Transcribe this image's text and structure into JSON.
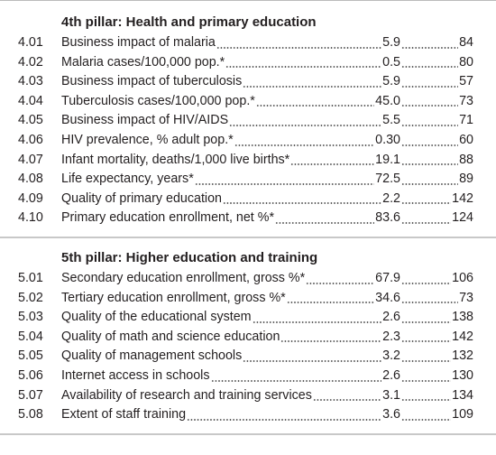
{
  "sections": [
    {
      "title": "4th pillar: Health and primary education",
      "rows": [
        {
          "code": "4.01",
          "label": "Business impact of malaria",
          "value": "5.9",
          "rank": 84
        },
        {
          "code": "4.02",
          "label": "Malaria cases/100,000 pop.*",
          "value": "0.5",
          "rank": 80
        },
        {
          "code": "4.03",
          "label": "Business impact of tuberculosis",
          "value": "5.9",
          "rank": 57
        },
        {
          "code": "4.04",
          "label": "Tuberculosis cases/100,000 pop.*",
          "value": "45.0",
          "rank": 73
        },
        {
          "code": "4.05",
          "label": "Business impact of HIV/AIDS",
          "value": "5.5",
          "rank": 71
        },
        {
          "code": "4.06",
          "label": "HIV prevalence, % adult pop.*",
          "value": "0.30",
          "rank": 60
        },
        {
          "code": "4.07",
          "label": "Infant mortality, deaths/1,000 live births*",
          "value": "19.1",
          "rank": 88
        },
        {
          "code": "4.08",
          "label": "Life expectancy, years*",
          "value": "72.5",
          "rank": 89
        },
        {
          "code": "4.09",
          "label": "Quality of primary education",
          "value": "2.2",
          "rank": 142
        },
        {
          "code": "4.10",
          "label": "Primary education enrollment, net %*",
          "value": "83.6",
          "rank": 124
        }
      ]
    },
    {
      "title": "5th pillar: Higher education and training",
      "rows": [
        {
          "code": "5.01",
          "label": "Secondary education enrollment, gross %*",
          "value": "67.9",
          "rank": 106
        },
        {
          "code": "5.02",
          "label": "Tertiary education enrollment, gross %*",
          "value": "34.6",
          "rank": 73
        },
        {
          "code": "5.03",
          "label": "Quality of the educational system",
          "value": "2.6",
          "rank": 138
        },
        {
          "code": "5.04",
          "label": "Quality of math and science education",
          "value": "2.3",
          "rank": 142
        },
        {
          "code": "5.05",
          "label": "Quality of management schools",
          "value": "3.2",
          "rank": 132
        },
        {
          "code": "5.06",
          "label": "Internet access in schools",
          "value": "2.6",
          "rank": 130
        },
        {
          "code": "5.07",
          "label": "Availability of research and training services",
          "value": "3.1",
          "rank": 134
        },
        {
          "code": "5.08",
          "label": "Extent of staff training",
          "value": "3.6",
          "rank": 109
        }
      ]
    }
  ]
}
